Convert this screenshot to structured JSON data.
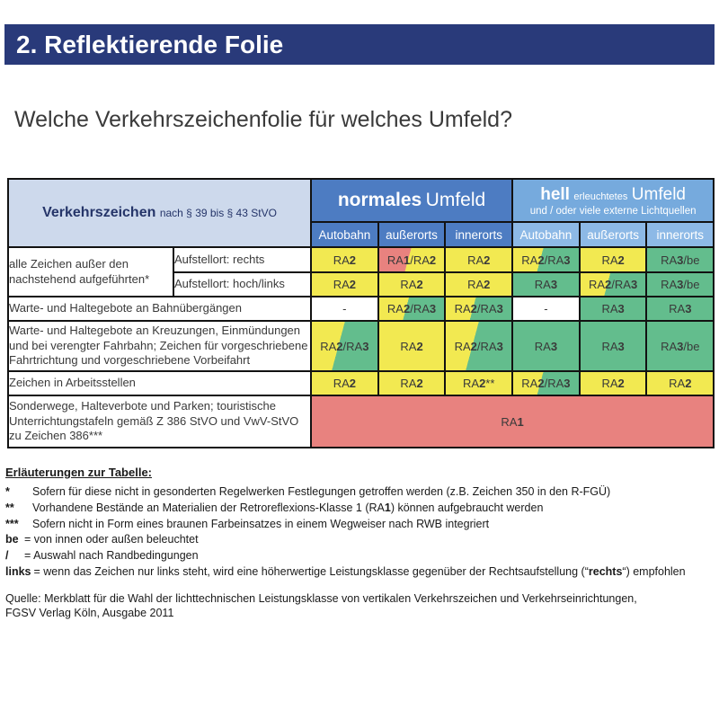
{
  "palette": {
    "navy_bar": "#293a7a",
    "header_light_blue": "#cdd9ec",
    "normal_blue": "#4d7cc2",
    "hell_blue": "#76aadd",
    "hell_sub_blue": "#8db9e6",
    "class_ra2_yellow": "#f2e951",
    "class_ra3_green": "#63bd8d",
    "class_ra1_red": "#e8827f"
  },
  "header": {
    "title": "2. Reflektierende Folie"
  },
  "question": "Welche Verkehrszeichenfolie für welches Umfeld?",
  "table": {
    "corner_bold": "Verkehrszeichen",
    "corner_rest": "nach § 39 bis § 43 StVO",
    "normal_bold": "normales",
    "normal_rest": "Umfeld",
    "hell_bold": "hell",
    "hell_small": "erleuchtetes",
    "hell_big": "Umfeld",
    "hell_sub": "und / oder viele externe Lichtquellen",
    "subcols_normal": [
      "Autobahn",
      "außerorts",
      "innerorts"
    ],
    "subcols_hell": [
      "Autobahn",
      "außerorts",
      "innerorts"
    ],
    "row1": {
      "label": "alle Zeichen außer den nachstehend aufgeführten*",
      "sub1": "Aufstellort: rechts",
      "cells1": [
        "RA2",
        "RA1/RA2",
        "RA2",
        "RA2/RA3",
        "RA2",
        "RA3/be"
      ],
      "sub2": "Aufstellort: hoch/links",
      "cells2": [
        "RA2",
        "RA2",
        "RA2",
        "RA3",
        "RA2/RA3",
        "RA3/be"
      ]
    },
    "row2": {
      "label": "Warte- und Haltegebote an Bahnübergängen",
      "cells": [
        "-",
        "RA2/RA3",
        "RA2/RA3",
        "-",
        "RA3",
        "RA3"
      ]
    },
    "row3": {
      "label": "Warte- und Haltegebote an Kreuzungen, Einmündungen und bei verengter Fahrbahn; Zeichen für vorgeschriebene Fahrtrichtung und vorgeschriebene Vorbeifahrt",
      "cells": [
        "RA2/RA3",
        "RA2",
        "RA2/RA3",
        "RA3",
        "RA3",
        "RA3/be"
      ]
    },
    "row4": {
      "label": "Zeichen in Arbeitsstellen",
      "cells": [
        "RA2",
        "RA2",
        "RA2**",
        "RA2/RA3",
        "RA2",
        "RA2"
      ]
    },
    "row5": {
      "label": "Sonderwege, Halteverbote und Parken; touristische Unterrichtungstafeln gemäß Z 386 StVO und VwV-StVO zu Zeichen 386***",
      "value": "RA1"
    }
  },
  "notes": {
    "heading": "Erläuterungen zur Tabelle:",
    "n1_mark": "*",
    "n1_text": "Sofern für diese nicht in gesonderten Regelwerken Festlegungen getroffen werden (z.B. Zeichen 350 in den R-FGÜ)",
    "n2_mark": "**",
    "n2_pre": "Vorhandene Bestände an Materialien der Retroreflexions-Klasse 1 (RA",
    "n2_bold": "1",
    "n2_post": ") können aufgebraucht werden",
    "n3_mark": "***",
    "n3_text": "Sofern nicht in Form eines braunen Farbeinsatzes in einem Wegweiser nach RWB integriert",
    "n4_mark": "be",
    "n4_text": "= von innen oder außen beleuchtet",
    "n5_mark": "/",
    "n5_text": "= Auswahl nach Randbedingungen",
    "n6_mark": "links",
    "n6_pre": "= wenn das Zeichen nur links steht, wird eine höherwertige Leistungsklasse gegenüber der Rechtsaufstellung (“",
    "n6_bold": "rechts",
    "n6_post": "“) empfohlen",
    "source1": "Quelle: Merkblatt für die Wahl der lichttechnischen Leistungsklasse von vertikalen Verkehrszeichen und Verkehrseinrichtungen,",
    "source2": "FGSV Verlag Köln, Ausgabe 2011"
  }
}
